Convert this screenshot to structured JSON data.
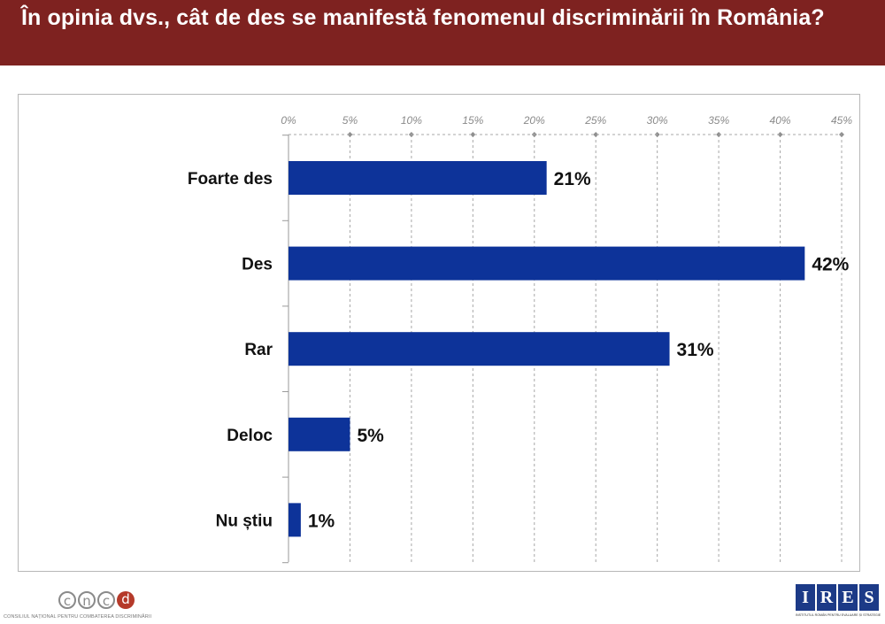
{
  "header": {
    "title": "În opinia dvs., cât de des se manifestă fenomenul discriminării în România?"
  },
  "chart_data": {
    "type": "bar",
    "orientation": "horizontal",
    "categories": [
      "Foarte des",
      "Des",
      "Rar",
      "Deloc",
      "Nu știu"
    ],
    "values": [
      21,
      42,
      31,
      5,
      1
    ],
    "value_labels": [
      "21%",
      "42%",
      "31%",
      "5%",
      "1%"
    ],
    "ticks": [
      "0%",
      "5%",
      "10%",
      "15%",
      "20%",
      "25%",
      "30%",
      "35%",
      "40%",
      "45%"
    ],
    "xlim": [
      0,
      45
    ],
    "axis_position": "top",
    "grid": true,
    "bar_color": "#0d3399",
    "grid_color": "#a8a8a8",
    "tick_label_color": "#8a8a8a",
    "title": "",
    "xlabel": "",
    "ylabel": ""
  },
  "footer": {
    "left_logo": {
      "letters": [
        "c",
        "n",
        "c",
        "d"
      ],
      "caption": "CONSILIUL NAȚIONAL PENTRU COMBATEREA DISCRIMINĂRII",
      "colors": [
        "#8a8a8a",
        "#8a8a8a",
        "#8a8a8a",
        "#b53a2a"
      ]
    },
    "right_logo": {
      "letters": [
        "I",
        "R",
        "E",
        "S"
      ],
      "caption": "INSTITUTUL ROMÂN PENTRU EVALUARE ȘI STRATEGIE",
      "color": "#1c3a87"
    }
  }
}
